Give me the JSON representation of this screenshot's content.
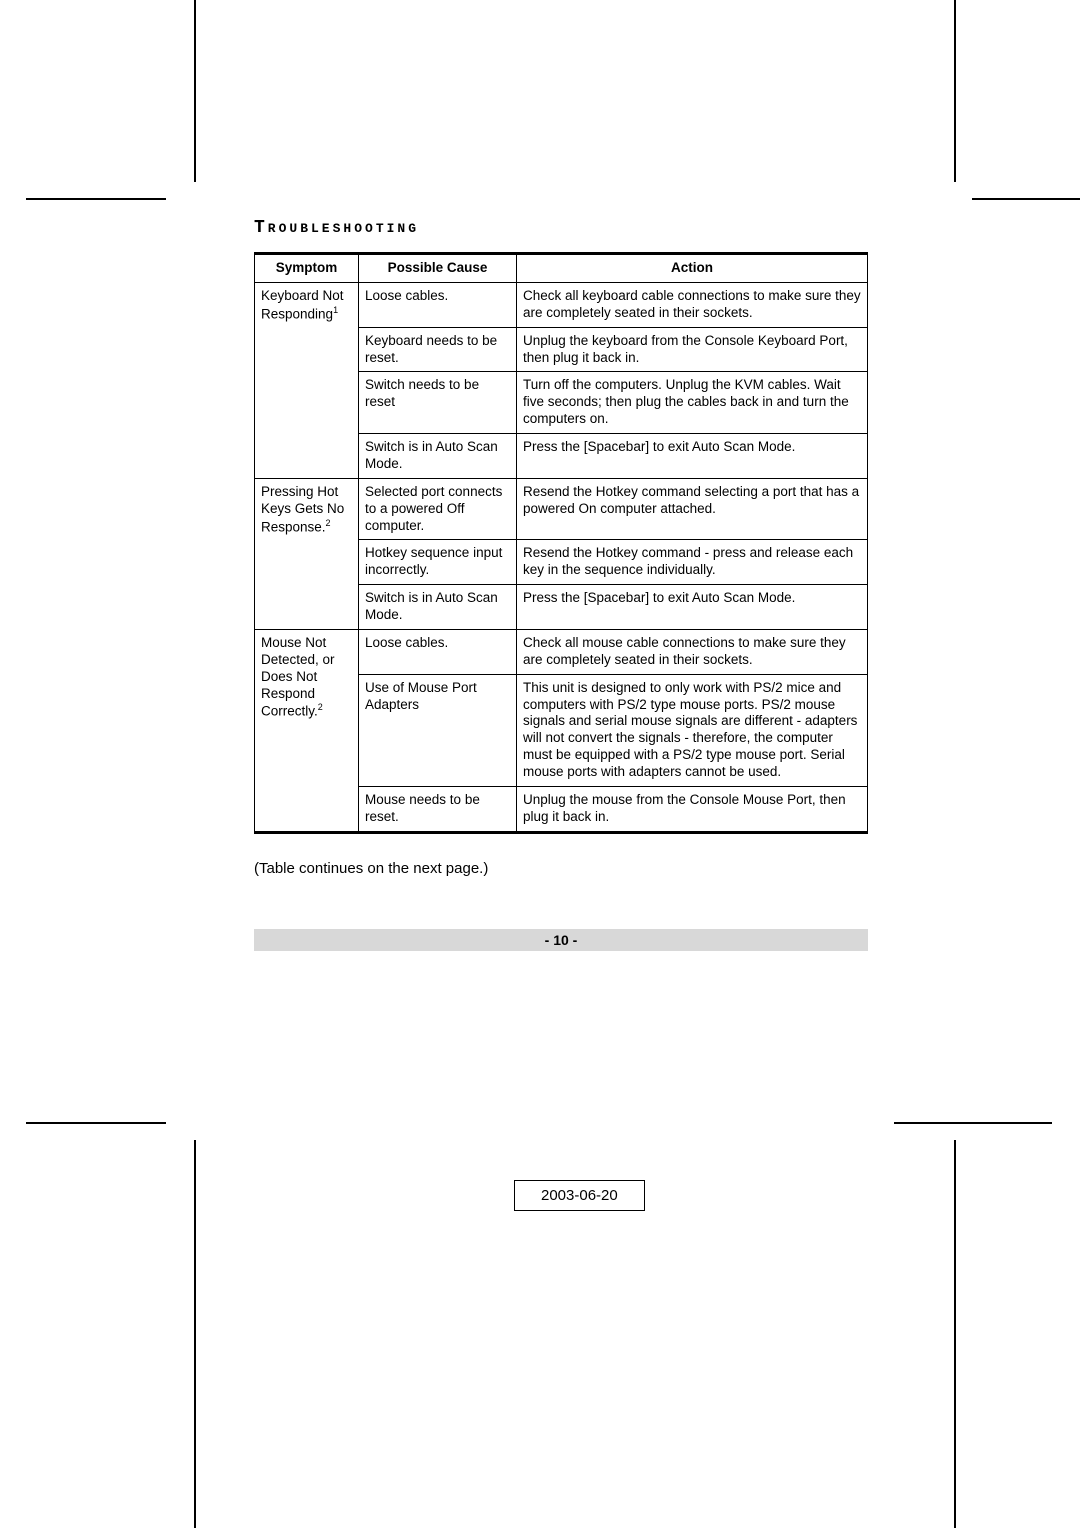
{
  "title": "Troubleshooting",
  "table": {
    "columns": {
      "symptom": "Symptom",
      "cause": "Possible Cause",
      "action": "Action"
    },
    "groups": [
      {
        "symptom": "Keyboard Not Responding",
        "supRef": "1",
        "rows": [
          {
            "cause": "Loose cables.",
            "action": "Check all keyboard cable connections to make sure they are completely seated in their sockets."
          },
          {
            "cause": "Keyboard needs to be reset.",
            "action": "Unplug the keyboard from the Console Keyboard Port, then plug it back in."
          },
          {
            "cause": "Switch needs to be reset",
            "action": "Turn off the computers. Unplug the KVM cables. Wait five seconds; then plug the cables back in and turn the computers on."
          },
          {
            "cause": "Switch is in Auto Scan Mode.",
            "action": "Press the [Spacebar] to exit Auto Scan Mode."
          }
        ]
      },
      {
        "symptom": "Pressing Hot Keys Gets No Response.",
        "supRef": "2",
        "rows": [
          {
            "cause": "Selected port connects to a powered Off computer.",
            "action": "Resend the Hotkey command selecting a port that has a powered On computer attached."
          },
          {
            "cause": "Hotkey sequence input incorrectly.",
            "action": "Resend the Hotkey command - press and release each key in the sequence individually."
          },
          {
            "cause": "Switch is in Auto Scan Mode.",
            "action": "Press the [Spacebar] to exit Auto Scan Mode."
          }
        ]
      },
      {
        "symptom": "Mouse Not Detected, or Does Not Respond Correctly.",
        "supRef": "2",
        "rows": [
          {
            "cause": "Loose cables.",
            "action": "Check all mouse cable connections to make sure they are completely seated in their sockets."
          },
          {
            "cause": "Use of Mouse Port Adapters",
            "action": "This unit is designed to only work with PS/2 mice and computers with PS/2 type mouse ports. PS/2 mouse signals and serial mouse signals are different - adapters will not convert the signals - therefore, the computer must be equipped with a PS/2 type mouse port. Serial mouse ports with adapters cannot be used."
          },
          {
            "cause": "Mouse needs to be reset.",
            "action": "Unplug the mouse from the Console Mouse Port, then plug it back in."
          }
        ]
      }
    ]
  },
  "tableNote": "(Table continues on the next page.)",
  "pageNumber": "- 10 -",
  "docDate": "2003-06-20",
  "style": {
    "colors": {
      "pageBg": "#ffffff",
      "text": "#000000",
      "footerBg": "#d8d8d8",
      "rule": "#000000"
    },
    "fontSizes": {
      "title": 18,
      "body": 13.5,
      "note": 15,
      "footer": 14,
      "date": 15
    },
    "columnWidths": {
      "symptom": 104,
      "cause": 158,
      "action": 352
    }
  }
}
